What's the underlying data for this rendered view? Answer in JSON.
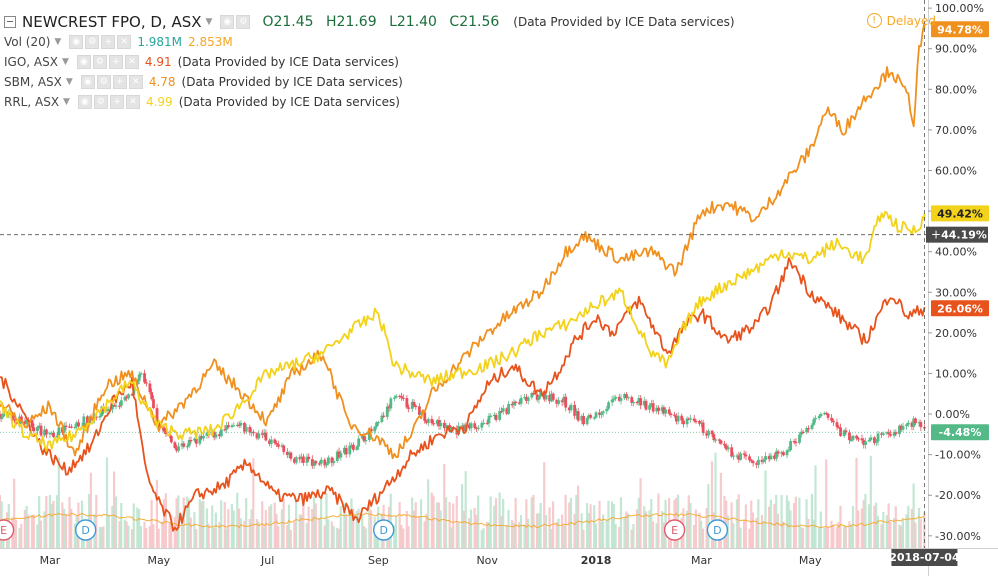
{
  "legend": {
    "main": {
      "title": "NEWCREST FPO, D, ASX",
      "open": "O21.45",
      "high": "H21.69",
      "low": "L21.40",
      "close": "C21.56",
      "provider": "(Data Provided by ICE Data services)"
    },
    "volume": {
      "label": "Vol (20)",
      "value1": "1.981M",
      "value2": "2.853M",
      "color1": "#26a69a",
      "color2": "#f5a623"
    },
    "comparisons": [
      {
        "label": "IGO, ASX",
        "value": "4.91",
        "provider": "(Data Provided by ICE Data services)",
        "color": "#e8521c"
      },
      {
        "label": "SBM, ASX",
        "value": "4.78",
        "provider": "(Data Provided by ICE Data services)",
        "color": "#f0901e"
      },
      {
        "label": "RRL, ASX",
        "value": "4.99",
        "provider": "(Data Provided by ICE Data services)",
        "color": "#f2d21b"
      }
    ]
  },
  "status": {
    "delayed": "Delayed"
  },
  "chart_data": {
    "type": "line",
    "title": "NEWCREST FPO, D, ASX",
    "y_unit": "%",
    "ylim": [
      -33,
      102
    ],
    "y_ticks": [
      100,
      90,
      80,
      70,
      60,
      50,
      40,
      30,
      20,
      10,
      0,
      -10,
      -20,
      -30
    ],
    "y_tick_labels": [
      "100.00%",
      "90.00%",
      "80.00%",
      "70.00%",
      "60.00%",
      "50.00%",
      "40.00%",
      "30.00%",
      "20.00%",
      "10.00%",
      "0.00%",
      "-10.00%",
      "-20.00%",
      "-30.00%"
    ],
    "x_range": [
      "2017-02-01",
      "2018-07-06"
    ],
    "x_ticks": [
      {
        "date": "2017-03-01",
        "label": "Mar",
        "bold": false
      },
      {
        "date": "2017-05-01",
        "label": "May",
        "bold": false
      },
      {
        "date": "2017-07-01",
        "label": "Jul",
        "bold": false
      },
      {
        "date": "2017-09-01",
        "label": "Sep",
        "bold": false
      },
      {
        "date": "2017-11-01",
        "label": "Nov",
        "bold": false
      },
      {
        "date": "2018-01-01",
        "label": "2018",
        "bold": true
      },
      {
        "date": "2018-03-01",
        "label": "Mar",
        "bold": false
      },
      {
        "date": "2018-05-01",
        "label": "May",
        "bold": false
      }
    ],
    "cursor": {
      "date": "2018-07-04",
      "value": 44.19,
      "label": "2018-07-04",
      "value_label": "44.19%"
    },
    "main_series": {
      "name": "NEWCREST FPO",
      "up_color": "#53b987",
      "down_color": "#eb4d5c",
      "last_label": "-4.48%",
      "points": [
        [
          "2017-02-01",
          0
        ],
        [
          "2017-02-15",
          -2
        ],
        [
          "2017-03-01",
          -5
        ],
        [
          "2017-03-15",
          -3
        ],
        [
          "2017-04-01",
          1
        ],
        [
          "2017-04-15",
          4
        ],
        [
          "2017-04-22",
          10
        ],
        [
          "2017-05-01",
          -2
        ],
        [
          "2017-05-10",
          -8
        ],
        [
          "2017-05-20",
          -7
        ],
        [
          "2017-06-01",
          -5
        ],
        [
          "2017-06-15",
          -3
        ],
        [
          "2017-07-01",
          -6
        ],
        [
          "2017-07-15",
          -11
        ],
        [
          "2017-08-01",
          -12
        ],
        [
          "2017-08-15",
          -9
        ],
        [
          "2017-09-01",
          -3
        ],
        [
          "2017-09-10",
          4
        ],
        [
          "2017-09-20",
          2
        ],
        [
          "2017-10-01",
          -2
        ],
        [
          "2017-10-15",
          -4
        ],
        [
          "2017-11-01",
          -2
        ],
        [
          "2017-11-15",
          2
        ],
        [
          "2017-12-01",
          5
        ],
        [
          "2017-12-15",
          3
        ],
        [
          "2017-12-25",
          -2
        ],
        [
          "2018-01-01",
          0
        ],
        [
          "2018-01-15",
          4
        ],
        [
          "2018-02-01",
          2
        ],
        [
          "2018-02-15",
          -1
        ],
        [
          "2018-03-01",
          -3
        ],
        [
          "2018-03-15",
          -9
        ],
        [
          "2018-04-01",
          -12
        ],
        [
          "2018-04-15",
          -10
        ],
        [
          "2018-05-01",
          -3
        ],
        [
          "2018-05-10",
          0
        ],
        [
          "2018-05-20",
          -5
        ],
        [
          "2018-06-01",
          -7
        ],
        [
          "2018-06-15",
          -5
        ],
        [
          "2018-07-01",
          -1
        ],
        [
          "2018-07-04",
          -4.48
        ]
      ]
    },
    "series": [
      {
        "name": "IGO, ASX",
        "color": "#e8521c",
        "last_label": "26.06%",
        "points": [
          [
            "2017-02-01",
            9
          ],
          [
            "2017-02-12",
            2
          ],
          [
            "2017-02-24",
            -8
          ],
          [
            "2017-03-10",
            -14
          ],
          [
            "2017-03-24",
            -8
          ],
          [
            "2017-04-05",
            3
          ],
          [
            "2017-04-16",
            8
          ],
          [
            "2017-04-24",
            -15
          ],
          [
            "2017-05-01",
            -22
          ],
          [
            "2017-05-10",
            -28
          ],
          [
            "2017-05-22",
            -20
          ],
          [
            "2017-06-05",
            -18
          ],
          [
            "2017-06-20",
            -12
          ],
          [
            "2017-07-05",
            -20
          ],
          [
            "2017-07-20",
            -21
          ],
          [
            "2017-08-05",
            -19
          ],
          [
            "2017-08-20",
            -26
          ],
          [
            "2017-09-05",
            -18
          ],
          [
            "2017-09-20",
            -10
          ],
          [
            "2017-10-05",
            -5
          ],
          [
            "2017-10-20",
            -3
          ],
          [
            "2017-11-01",
            7
          ],
          [
            "2017-11-15",
            12
          ],
          [
            "2017-12-01",
            5
          ],
          [
            "2017-12-10",
            10
          ],
          [
            "2017-12-20",
            18
          ],
          [
            "2018-01-01",
            24
          ],
          [
            "2018-01-10",
            20
          ],
          [
            "2018-01-25",
            28
          ],
          [
            "2018-02-10",
            15
          ],
          [
            "2018-02-20",
            22
          ],
          [
            "2018-03-01",
            25
          ],
          [
            "2018-03-15",
            18
          ],
          [
            "2018-04-01",
            22
          ],
          [
            "2018-04-10",
            28
          ],
          [
            "2018-04-20",
            38
          ],
          [
            "2018-05-01",
            30
          ],
          [
            "2018-05-15",
            25
          ],
          [
            "2018-06-01",
            18
          ],
          [
            "2018-06-15",
            30
          ],
          [
            "2018-06-25",
            24
          ],
          [
            "2018-07-04",
            26.06
          ]
        ]
      },
      {
        "name": "SBM, ASX",
        "color": "#f0901e",
        "last_label": "94.78%",
        "points": [
          [
            "2017-02-01",
            3
          ],
          [
            "2017-02-15",
            -3
          ],
          [
            "2017-03-01",
            2
          ],
          [
            "2017-03-15",
            -10
          ],
          [
            "2017-04-01",
            7
          ],
          [
            "2017-04-15",
            10
          ],
          [
            "2017-05-01",
            -3
          ],
          [
            "2017-05-15",
            3
          ],
          [
            "2017-06-01",
            12
          ],
          [
            "2017-06-15",
            6
          ],
          [
            "2017-07-01",
            -2
          ],
          [
            "2017-07-15",
            10
          ],
          [
            "2017-08-01",
            15
          ],
          [
            "2017-08-15",
            -2
          ],
          [
            "2017-09-01",
            -6
          ],
          [
            "2017-09-10",
            -10
          ],
          [
            "2017-09-20",
            -5
          ],
          [
            "2017-10-01",
            5
          ],
          [
            "2017-10-15",
            12
          ],
          [
            "2017-11-01",
            20
          ],
          [
            "2017-11-15",
            25
          ],
          [
            "2017-12-01",
            30
          ],
          [
            "2017-12-15",
            40
          ],
          [
            "2017-12-25",
            44
          ],
          [
            "2018-01-01",
            42
          ],
          [
            "2018-01-15",
            38
          ],
          [
            "2018-02-01",
            40
          ],
          [
            "2018-02-15",
            35
          ],
          [
            "2018-03-01",
            50
          ],
          [
            "2018-03-15",
            52
          ],
          [
            "2018-04-01",
            48
          ],
          [
            "2018-04-15",
            56
          ],
          [
            "2018-05-01",
            65
          ],
          [
            "2018-05-10",
            75
          ],
          [
            "2018-05-20",
            70
          ],
          [
            "2018-06-01",
            78
          ],
          [
            "2018-06-15",
            85
          ],
          [
            "2018-06-25",
            78
          ],
          [
            "2018-06-28",
            72
          ],
          [
            "2018-07-01",
            90
          ],
          [
            "2018-07-04",
            94.78
          ]
        ]
      },
      {
        "name": "RRL, ASX",
        "color": "#f2d21b",
        "last_label": "49.42%",
        "points": [
          [
            "2017-02-01",
            2
          ],
          [
            "2017-02-15",
            -5
          ],
          [
            "2017-03-01",
            -8
          ],
          [
            "2017-03-15",
            -5
          ],
          [
            "2017-04-01",
            2
          ],
          [
            "2017-04-15",
            8
          ],
          [
            "2017-05-01",
            -3
          ],
          [
            "2017-05-15",
            -5
          ],
          [
            "2017-06-01",
            -4
          ],
          [
            "2017-06-15",
            2
          ],
          [
            "2017-07-01",
            10
          ],
          [
            "2017-07-15",
            12
          ],
          [
            "2017-08-01",
            15
          ],
          [
            "2017-08-15",
            20
          ],
          [
            "2017-09-01",
            25
          ],
          [
            "2017-09-10",
            12
          ],
          [
            "2017-09-20",
            10
          ],
          [
            "2017-10-01",
            8
          ],
          [
            "2017-10-15",
            10
          ],
          [
            "2017-11-01",
            12
          ],
          [
            "2017-11-15",
            15
          ],
          [
            "2017-12-01",
            20
          ],
          [
            "2017-12-15",
            22
          ],
          [
            "2018-01-01",
            27
          ],
          [
            "2018-01-15",
            30
          ],
          [
            "2018-02-01",
            15
          ],
          [
            "2018-02-10",
            12
          ],
          [
            "2018-02-20",
            22
          ],
          [
            "2018-03-01",
            28
          ],
          [
            "2018-03-15",
            32
          ],
          [
            "2018-04-01",
            36
          ],
          [
            "2018-04-15",
            40
          ],
          [
            "2018-05-01",
            38
          ],
          [
            "2018-05-15",
            42
          ],
          [
            "2018-06-01",
            38
          ],
          [
            "2018-06-10",
            50
          ],
          [
            "2018-06-20",
            46
          ],
          [
            "2018-06-30",
            45
          ],
          [
            "2018-07-04",
            49.42
          ]
        ]
      }
    ],
    "volume": {
      "ma_color": "#f5a623"
    },
    "events": [
      {
        "date": "2017-02-03",
        "label": "E",
        "kind": "earnings"
      },
      {
        "date": "2017-03-21",
        "label": "D",
        "kind": "dividend"
      },
      {
        "date": "2017-09-04",
        "label": "D",
        "kind": "dividend"
      },
      {
        "date": "2018-02-14",
        "label": "E",
        "kind": "earnings"
      },
      {
        "date": "2018-03-10",
        "label": "D",
        "kind": "dividend"
      }
    ],
    "grid": false,
    "legend_position": "top-left"
  }
}
